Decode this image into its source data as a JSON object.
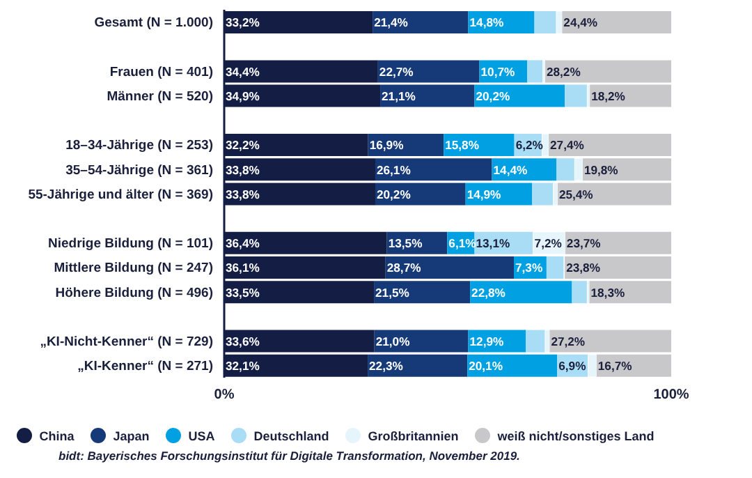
{
  "chart_data": {
    "type": "bar",
    "orientation": "horizontal",
    "stacked": true,
    "categories": [
      "Gesamt (N = 1.000)",
      null,
      "Frauen (N = 401)",
      "Männer (N = 520)",
      null,
      "18–34-Jährige (N = 253)",
      "35–54-Jährige (N = 361)",
      "55-Jährige und älter (N = 369)",
      null,
      "Niedrige Bildung (N = 101)",
      "Mittlere Bildung (N = 247)",
      "Höhere Bildung (N = 496)",
      null,
      "„KI-Nicht-Kenner“ (N = 729)",
      "„KI-Kenner“ (N = 271)"
    ],
    "series": [
      {
        "name": "China",
        "color": "#141e45",
        "values": [
          33.2,
          null,
          34.4,
          34.9,
          null,
          32.2,
          33.8,
          33.8,
          null,
          36.4,
          36.1,
          33.5,
          null,
          33.6,
          32.1
        ],
        "value_labels": [
          "33,2%",
          null,
          "34,4%",
          "34,9%",
          null,
          "32,2%",
          "33,8%",
          "33,8%",
          null,
          "36,4%",
          "36,1%",
          "33,5%",
          null,
          "33,6%",
          "32,1%"
        ]
      },
      {
        "name": "Japan",
        "color": "#163a78",
        "values": [
          21.4,
          null,
          22.7,
          21.1,
          null,
          16.9,
          26.1,
          20.2,
          null,
          13.5,
          28.7,
          21.5,
          null,
          21.0,
          22.3
        ],
        "value_labels": [
          "21,4%",
          null,
          "22,7%",
          "21,1%",
          null,
          "16,9%",
          "26,1%",
          "20,2%",
          null,
          "13,5%",
          "28,7%",
          "21,5%",
          null,
          "21,0%",
          "22,3%"
        ]
      },
      {
        "name": "USA",
        "color": "#00a0e3",
        "values": [
          14.8,
          null,
          10.7,
          20.2,
          null,
          15.8,
          14.4,
          14.9,
          null,
          6.1,
          7.3,
          22.8,
          null,
          12.9,
          20.1
        ],
        "value_labels": [
          "14,8%",
          null,
          "10,7%",
          "20,2%",
          null,
          "15,8%",
          "14,4%",
          "14,9%",
          null,
          "6,1%",
          "7,3%",
          "22,8%",
          null,
          "12,9%",
          "20,1%"
        ]
      },
      {
        "name": "Deutschland",
        "color": "#a9dcf5",
        "values": [
          4.9,
          null,
          3.5,
          5.0,
          null,
          6.2,
          4.1,
          4.7,
          null,
          13.1,
          3.9,
          3.4,
          null,
          4.3,
          6.9
        ],
        "value_labels": [
          null,
          null,
          null,
          null,
          null,
          "6,2%",
          null,
          null,
          null,
          "13,1%",
          null,
          null,
          null,
          null,
          "6,9%"
        ]
      },
      {
        "name": "Großbritannien",
        "color": "#e6f4fb",
        "values": [
          1.3,
          null,
          0.5,
          0.6,
          null,
          1.5,
          1.8,
          1.0,
          null,
          7.2,
          0.2,
          0.5,
          null,
          1.0,
          1.9
        ],
        "value_labels": [
          null,
          null,
          null,
          null,
          null,
          null,
          null,
          null,
          null,
          "7,2%",
          null,
          null,
          null,
          null,
          null
        ]
      },
      {
        "name": "weiß nicht/sonstiges Land",
        "color": "#c8c8ca",
        "values": [
          24.4,
          null,
          28.2,
          18.2,
          null,
          27.4,
          19.8,
          25.4,
          null,
          23.7,
          23.8,
          18.3,
          null,
          27.2,
          16.7
        ],
        "value_labels": [
          "24,4%",
          null,
          "28,2%",
          "18,2%",
          null,
          "27,4%",
          "19,8%",
          "25,4%",
          null,
          "23,7%",
          "23,8%",
          "18,3%",
          null,
          "27,2%",
          "16,7%"
        ]
      }
    ],
    "xlim": [
      0,
      100
    ],
    "xticks": [
      {
        "value": 0,
        "label": "0%"
      },
      {
        "value": 100,
        "label": "100%"
      }
    ],
    "grid": false,
    "legend": "bottom",
    "annotations": [
      "bidt: Bayerisches Forschungsinstitut für Digitale Transformation, November 2019."
    ]
  }
}
